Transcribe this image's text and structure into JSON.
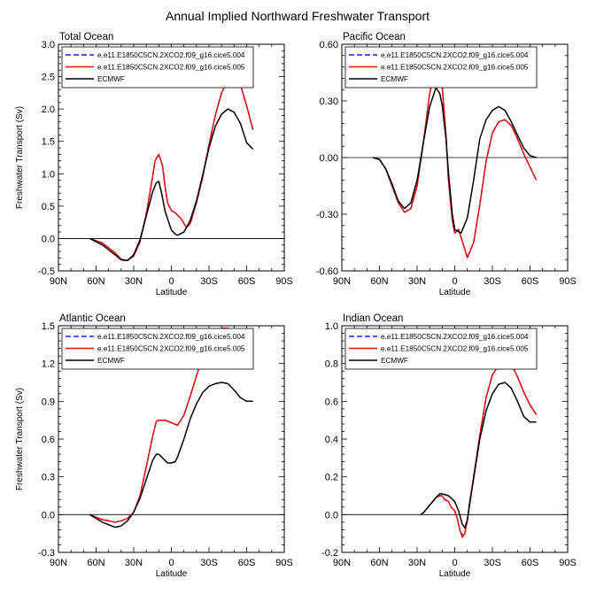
{
  "title": "Annual Implied Northward Freshwater Transport",
  "legend": [
    {
      "label": "e.e11.E1850C5CN.2XCO2.f09_g16.cice5.004",
      "color": "#1f1fdf",
      "dash": true
    },
    {
      "label": "e.e11.E1850C5CN.2XCO2.f09_g16.cice5.005",
      "color": "#e01010",
      "dash": false
    },
    {
      "label": "ECMWF",
      "color": "#000000",
      "dash": false
    }
  ],
  "chart_data": [
    {
      "type": "line",
      "title": "Total Ocean",
      "xlabel": "Latitude",
      "ylabel": "Freshwater Transport (Sv)",
      "xlim": [
        90,
        -90
      ],
      "ylim": [
        -0.5,
        3.0
      ],
      "xticks": [
        90,
        60,
        30,
        0,
        -30,
        -60,
        -90
      ],
      "xtick_labels": [
        "90N",
        "60N",
        "30N",
        "0",
        "30S",
        "60S",
        "90S"
      ],
      "yticks": [
        -0.5,
        0.0,
        0.5,
        1.0,
        1.5,
        2.0,
        2.5,
        3.0
      ],
      "ytick_labels": [
        "-0.5",
        "0.0",
        "0.5",
        "1.0",
        "1.5",
        "2.0",
        "2.5",
        "3.0"
      ],
      "series": [
        {
          "name": "e.e11.E1850C5CN.2XCO2.f09_g16.cice5.004",
          "x": [
            65,
            55,
            45,
            40,
            35,
            30,
            25,
            20,
            15,
            13,
            10,
            7,
            5,
            3,
            0,
            -3,
            -5,
            -8,
            -12,
            -15,
            -20,
            -25,
            -30,
            -35,
            -40,
            -45,
            -50,
            -55,
            -60,
            -65
          ],
          "y": [
            0,
            -0.07,
            -0.22,
            -0.32,
            -0.34,
            -0.27,
            -0.05,
            0.38,
            0.95,
            1.2,
            1.3,
            1.12,
            0.8,
            0.55,
            0.43,
            0.4,
            0.36,
            0.3,
            0.17,
            0.23,
            0.55,
            0.95,
            1.45,
            1.9,
            2.25,
            2.45,
            2.5,
            2.38,
            2.05,
            1.68
          ]
        },
        {
          "name": "e.e11.E1850C5CN.2XCO2.f09_g16.cice5.005",
          "x": [
            65,
            55,
            45,
            40,
            35,
            30,
            25,
            20,
            15,
            13,
            10,
            7,
            5,
            3,
            0,
            -3,
            -5,
            -8,
            -12,
            -15,
            -20,
            -25,
            -30,
            -35,
            -40,
            -45,
            -50,
            -55,
            -60,
            -65
          ],
          "y": [
            0,
            -0.07,
            -0.22,
            -0.32,
            -0.34,
            -0.27,
            -0.05,
            0.38,
            0.95,
            1.2,
            1.3,
            1.12,
            0.8,
            0.55,
            0.43,
            0.4,
            0.36,
            0.3,
            0.17,
            0.23,
            0.55,
            0.95,
            1.45,
            1.9,
            2.25,
            2.45,
            2.5,
            2.38,
            2.05,
            1.68
          ]
        },
        {
          "name": "ECMWF",
          "x": [
            65,
            55,
            45,
            40,
            35,
            30,
            25,
            20,
            15,
            12,
            10,
            8,
            5,
            0,
            -3,
            -5,
            -10,
            -15,
            -20,
            -25,
            -30,
            -35,
            -40,
            -45,
            -50,
            -55,
            -60,
            -65
          ],
          "y": [
            0,
            -0.1,
            -0.25,
            -0.33,
            -0.34,
            -0.25,
            -0.02,
            0.35,
            0.72,
            0.86,
            0.88,
            0.72,
            0.42,
            0.13,
            0.07,
            0.05,
            0.1,
            0.28,
            0.58,
            0.98,
            1.4,
            1.73,
            1.92,
            2.0,
            1.95,
            1.78,
            1.48,
            1.38
          ]
        }
      ]
    },
    {
      "type": "line",
      "title": "Pacific Ocean",
      "xlabel": "Latitude",
      "ylabel": "",
      "xlim": [
        90,
        -90
      ],
      "ylim": [
        -0.6,
        0.6
      ],
      "xticks": [
        90,
        60,
        30,
        0,
        -30,
        -60,
        -90
      ],
      "xtick_labels": [
        "90N",
        "60N",
        "30N",
        "0",
        "30S",
        "60S",
        "90S"
      ],
      "yticks": [
        -0.6,
        -0.3,
        0.0,
        0.3,
        0.6
      ],
      "ytick_labels": [
        "-0.60",
        "-0.30",
        "0.00",
        "0.30",
        "0.60"
      ],
      "series": [
        {
          "name": "e.e11.E1850C5CN.2XCO2.f09_g16.cice5.004",
          "x": [
            65,
            60,
            55,
            50,
            45,
            40,
            35,
            30,
            25,
            20,
            15,
            12,
            10,
            7,
            5,
            2,
            0,
            -3,
            -5,
            -10,
            -15,
            -20,
            -25,
            -30,
            -35,
            -40,
            -45,
            -50,
            -55,
            -60,
            -65
          ],
          "y": [
            0,
            -0.01,
            -0.06,
            -0.15,
            -0.24,
            -0.29,
            -0.27,
            -0.15,
            0.08,
            0.34,
            0.48,
            0.47,
            0.38,
            0.12,
            -0.12,
            -0.33,
            -0.4,
            -0.38,
            -0.42,
            -0.53,
            -0.45,
            -0.25,
            -0.02,
            0.13,
            0.19,
            0.2,
            0.17,
            0.1,
            0.02,
            -0.05,
            -0.12
          ]
        },
        {
          "name": "e.e11.E1850C5CN.2XCO2.f09_g16.cice5.005",
          "x": [
            65,
            60,
            55,
            50,
            45,
            40,
            35,
            30,
            25,
            20,
            15,
            12,
            10,
            7,
            5,
            2,
            0,
            -3,
            -5,
            -10,
            -15,
            -20,
            -25,
            -30,
            -35,
            -40,
            -45,
            -50,
            -55,
            -60,
            -65
          ],
          "y": [
            0,
            -0.01,
            -0.06,
            -0.15,
            -0.24,
            -0.29,
            -0.27,
            -0.15,
            0.08,
            0.34,
            0.48,
            0.47,
            0.38,
            0.12,
            -0.12,
            -0.33,
            -0.4,
            -0.38,
            -0.42,
            -0.53,
            -0.45,
            -0.25,
            -0.02,
            0.13,
            0.19,
            0.2,
            0.17,
            0.1,
            0.02,
            -0.05,
            -0.12
          ]
        },
        {
          "name": "ECMWF",
          "x": [
            65,
            60,
            55,
            50,
            45,
            40,
            35,
            30,
            25,
            20,
            15,
            12,
            10,
            7,
            5,
            2,
            0,
            -5,
            -10,
            -15,
            -20,
            -25,
            -30,
            -35,
            -40,
            -45,
            -50,
            -55,
            -60,
            -65
          ],
          "y": [
            0,
            -0.01,
            -0.06,
            -0.14,
            -0.23,
            -0.27,
            -0.24,
            -0.12,
            0.08,
            0.27,
            0.37,
            0.34,
            0.28,
            0.1,
            -0.08,
            -0.3,
            -0.38,
            -0.4,
            -0.32,
            -0.12,
            0.1,
            0.2,
            0.25,
            0.27,
            0.25,
            0.19,
            0.12,
            0.05,
            0.01,
            0.0
          ]
        }
      ]
    },
    {
      "type": "line",
      "title": "Atlantic Ocean",
      "xlabel": "Latitude",
      "ylabel": "Freshwater Transport (Sv)",
      "xlim": [
        90,
        -90
      ],
      "ylim": [
        -0.3,
        1.5
      ],
      "xticks": [
        90,
        60,
        30,
        0,
        -30,
        -60,
        -90
      ],
      "xtick_labels": [
        "90N",
        "60N",
        "30N",
        "0",
        "30S",
        "60S",
        "90S"
      ],
      "yticks": [
        -0.3,
        0.0,
        0.3,
        0.6,
        0.9,
        1.2,
        1.5
      ],
      "ytick_labels": [
        "-0.3",
        "0.0",
        "0.3",
        "0.6",
        "0.9",
        "1.2",
        "1.5"
      ],
      "series": [
        {
          "name": "e.e11.E1850C5CN.2XCO2.f09_g16.cice5.004",
          "x": [
            65,
            60,
            55,
            50,
            45,
            40,
            35,
            30,
            25,
            20,
            15,
            12,
            10,
            5,
            0,
            -5,
            -10,
            -15,
            -20,
            -25,
            -30,
            -35,
            -40,
            -45,
            -50,
            -55,
            -60,
            -65
          ],
          "y": [
            0,
            -0.02,
            -0.04,
            -0.05,
            -0.06,
            -0.05,
            -0.03,
            0.02,
            0.15,
            0.38,
            0.62,
            0.74,
            0.75,
            0.75,
            0.73,
            0.71,
            0.79,
            0.94,
            1.1,
            1.26,
            1.37,
            1.45,
            1.48,
            1.48,
            1.45,
            1.4,
            1.34,
            1.29
          ]
        },
        {
          "name": "e.e11.E1850C5CN.2XCO2.f09_g16.cice5.005",
          "x": [
            65,
            60,
            55,
            50,
            45,
            40,
            35,
            30,
            25,
            20,
            15,
            12,
            10,
            5,
            0,
            -5,
            -10,
            -15,
            -20,
            -25,
            -30,
            -35,
            -40,
            -45,
            -50,
            -55,
            -60,
            -65
          ],
          "y": [
            0,
            -0.02,
            -0.04,
            -0.05,
            -0.06,
            -0.05,
            -0.03,
            0.02,
            0.15,
            0.38,
            0.62,
            0.74,
            0.75,
            0.75,
            0.73,
            0.71,
            0.79,
            0.94,
            1.1,
            1.26,
            1.37,
            1.45,
            1.48,
            1.48,
            1.45,
            1.4,
            1.34,
            1.29
          ]
        },
        {
          "name": "ECMWF",
          "x": [
            65,
            60,
            55,
            50,
            45,
            40,
            35,
            30,
            25,
            20,
            15,
            12,
            10,
            5,
            3,
            0,
            -3,
            -5,
            -10,
            -15,
            -20,
            -25,
            -30,
            -35,
            -40,
            -45,
            -50,
            -55,
            -60,
            -65
          ],
          "y": [
            0,
            -0.03,
            -0.06,
            -0.08,
            -0.1,
            -0.09,
            -0.05,
            0.02,
            0.13,
            0.28,
            0.43,
            0.48,
            0.48,
            0.43,
            0.41,
            0.41,
            0.42,
            0.46,
            0.6,
            0.76,
            0.88,
            0.97,
            1.02,
            1.04,
            1.05,
            1.04,
            0.99,
            0.93,
            0.9,
            0.9
          ]
        }
      ]
    },
    {
      "type": "line",
      "title": "Indian Ocean",
      "xlabel": "Latitude",
      "ylabel": "",
      "xlim": [
        90,
        -90
      ],
      "ylim": [
        -0.2,
        1.0
      ],
      "xticks": [
        90,
        60,
        30,
        0,
        -30,
        -60,
        -90
      ],
      "xtick_labels": [
        "90N",
        "60N",
        "30N",
        "0",
        "30S",
        "60S",
        "90S"
      ],
      "yticks": [
        -0.2,
        0.0,
        0.2,
        0.4,
        0.6,
        0.8,
        1.0
      ],
      "ytick_labels": [
        "-0.2",
        "0.0",
        "0.2",
        "0.4",
        "0.6",
        "0.8",
        "1.0"
      ],
      "series": [
        {
          "name": "e.e11.E1850C5CN.2XCO2.f09_g16.cice5.004",
          "x": [
            27,
            25,
            20,
            15,
            12,
            10,
            8,
            5,
            3,
            0,
            -2,
            -4,
            -6,
            -8,
            -10,
            -12,
            -15,
            -20,
            -25,
            -30,
            -35,
            -40,
            -42,
            -45,
            -50,
            -55,
            -60,
            -65
          ],
          "y": [
            0,
            0.01,
            0.05,
            0.09,
            0.1,
            0.1,
            0.08,
            0.07,
            0.04,
            0.02,
            -0.02,
            -0.08,
            -0.11,
            -0.1,
            -0.03,
            0.07,
            0.2,
            0.42,
            0.62,
            0.74,
            0.79,
            0.81,
            0.81,
            0.8,
            0.73,
            0.65,
            0.58,
            0.53
          ]
        },
        {
          "name": "e.e11.E1850C5CN.2XCO2.f09_g16.cice5.005",
          "x": [
            27,
            25,
            20,
            15,
            12,
            10,
            8,
            5,
            3,
            0,
            -2,
            -4,
            -6,
            -8,
            -10,
            -12,
            -15,
            -20,
            -25,
            -30,
            -35,
            -40,
            -42,
            -45,
            -50,
            -55,
            -60,
            -65
          ],
          "y": [
            0,
            0.01,
            0.05,
            0.09,
            0.1,
            0.1,
            0.08,
            0.07,
            0.04,
            0.02,
            -0.02,
            -0.08,
            -0.12,
            -0.1,
            -0.03,
            0.07,
            0.2,
            0.42,
            0.62,
            0.74,
            0.79,
            0.81,
            0.81,
            0.8,
            0.73,
            0.65,
            0.58,
            0.53
          ]
        },
        {
          "name": "ECMWF",
          "x": [
            27,
            25,
            20,
            15,
            12,
            10,
            5,
            0,
            -3,
            -6,
            -8,
            -10,
            -12,
            -15,
            -20,
            -25,
            -30,
            -35,
            -40,
            -45,
            -50,
            -55,
            -60,
            -65
          ],
          "y": [
            0,
            0.01,
            0.05,
            0.09,
            0.11,
            0.11,
            0.1,
            0.07,
            0.02,
            -0.05,
            -0.07,
            -0.03,
            0.06,
            0.19,
            0.4,
            0.55,
            0.64,
            0.69,
            0.7,
            0.67,
            0.6,
            0.52,
            0.49,
            0.49
          ]
        }
      ]
    }
  ]
}
